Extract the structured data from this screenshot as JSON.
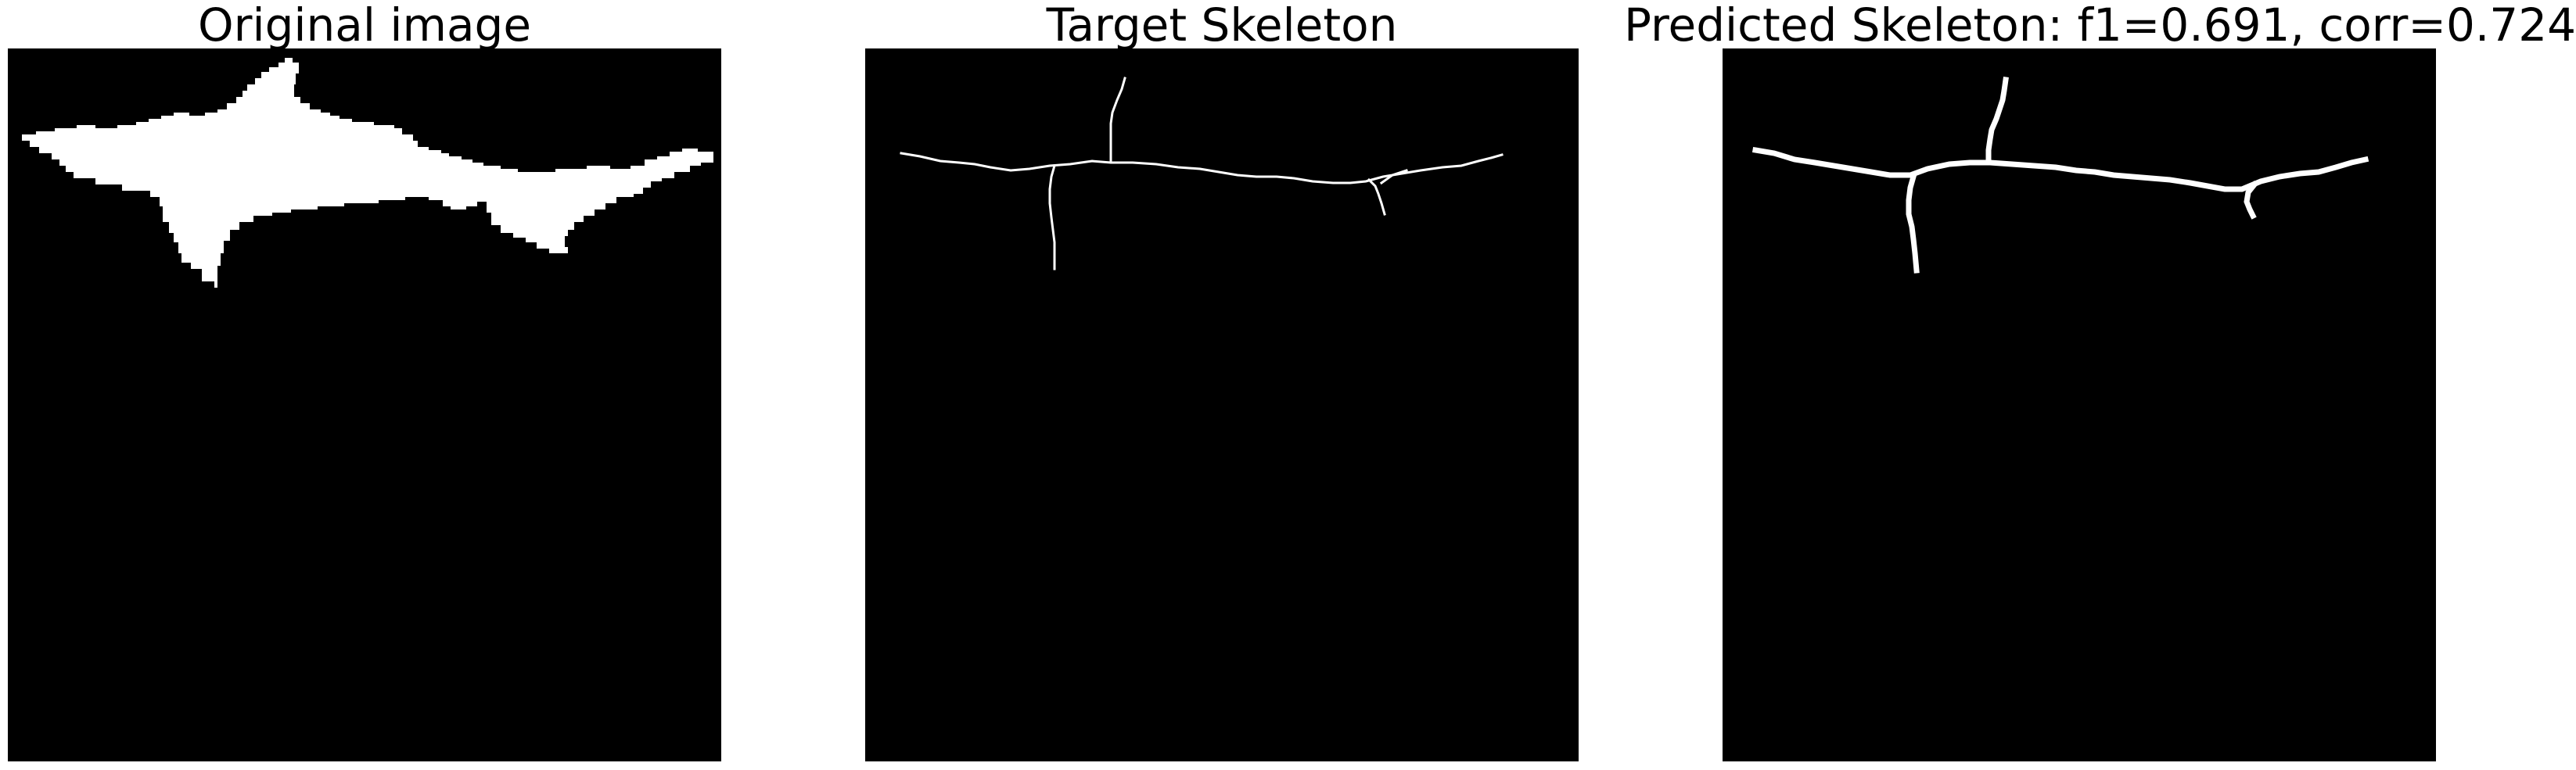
{
  "panels": [
    {
      "title": "Original image"
    },
    {
      "title": "Target Skeleton"
    },
    {
      "title": "Predicted Skeleton: f1=0.691, corr=0.724"
    }
  ],
  "colors": {
    "background": "#000000",
    "foreground": "#ffffff",
    "page": "#ffffff"
  }
}
